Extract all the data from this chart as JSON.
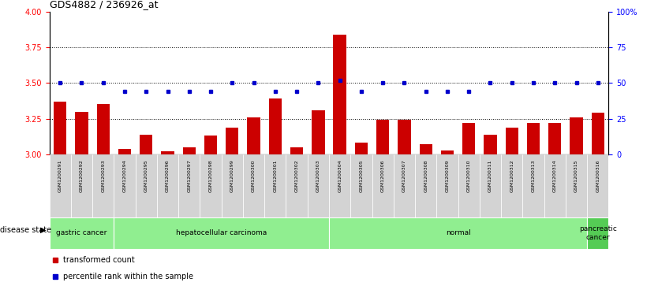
{
  "title": "GDS4882 / 236926_at",
  "samples": [
    "GSM1200291",
    "GSM1200292",
    "GSM1200293",
    "GSM1200294",
    "GSM1200295",
    "GSM1200296",
    "GSM1200297",
    "GSM1200298",
    "GSM1200299",
    "GSM1200300",
    "GSM1200301",
    "GSM1200302",
    "GSM1200303",
    "GSM1200304",
    "GSM1200305",
    "GSM1200306",
    "GSM1200307",
    "GSM1200308",
    "GSM1200309",
    "GSM1200310",
    "GSM1200311",
    "GSM1200312",
    "GSM1200313",
    "GSM1200314",
    "GSM1200315",
    "GSM1200316"
  ],
  "bar_values": [
    3.37,
    3.3,
    3.35,
    3.04,
    3.14,
    3.02,
    3.05,
    3.13,
    3.19,
    3.26,
    3.39,
    3.05,
    3.31,
    3.84,
    3.08,
    3.24,
    3.24,
    3.07,
    3.03,
    3.22,
    3.14,
    3.19,
    3.22,
    3.22,
    3.26,
    3.29
  ],
  "percentile_values": [
    50,
    50,
    50,
    44,
    44,
    44,
    44,
    44,
    50,
    50,
    44,
    44,
    50,
    52,
    44,
    50,
    50,
    44,
    44,
    44,
    50,
    50,
    50,
    50,
    50,
    50
  ],
  "disease_groups": [
    {
      "label": "gastric cancer",
      "start": 0,
      "end": 3,
      "light": true
    },
    {
      "label": "hepatocellular carcinoma",
      "start": 3,
      "end": 13,
      "light": true
    },
    {
      "label": "normal",
      "start": 13,
      "end": 25,
      "light": true
    },
    {
      "label": "pancreatic\ncancer",
      "start": 25,
      "end": 26,
      "light": false
    }
  ],
  "bar_color": "#CC0000",
  "dot_color": "#0000CC",
  "ylim_left": [
    3.0,
    4.0
  ],
  "ylim_right": [
    0,
    100
  ],
  "yticks_left": [
    3.0,
    3.25,
    3.5,
    3.75,
    4.0
  ],
  "yticks_right": [
    0,
    25,
    50,
    75,
    100
  ],
  "hlines": [
    3.25,
    3.5,
    3.75
  ],
  "light_green": "#90EE90",
  "dark_green": "#55CC55"
}
